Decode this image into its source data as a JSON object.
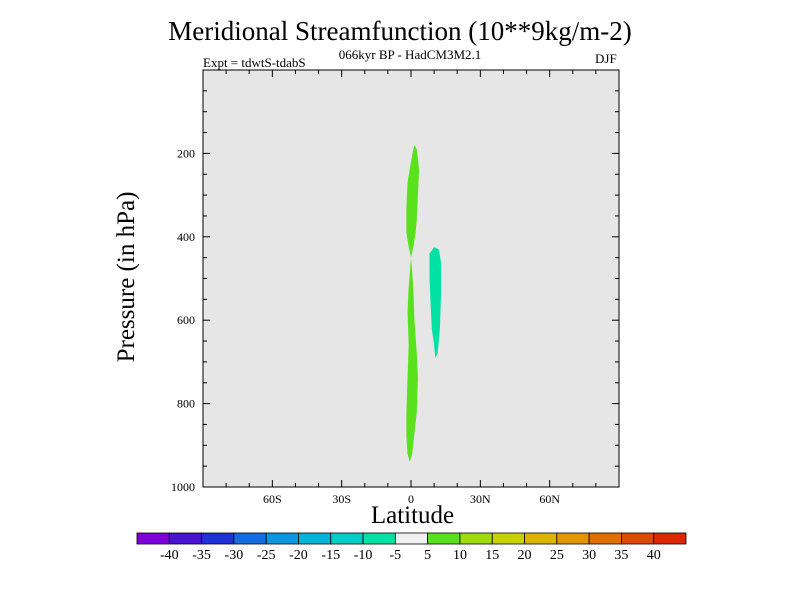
{
  "chart_data": {
    "type": "contour",
    "title": "Meridional Streamfunction (10**9kg/m-2)",
    "subtitle": "066kyr BP - HadCM3M2.1",
    "experiment": "Expt = tdwtS-tdabS",
    "season": "DJF",
    "xlabel": "Latitude",
    "ylabel": "Pressure (in hPa)",
    "xlim": [
      -90,
      90
    ],
    "ylim": [
      1000,
      0
    ],
    "x_ticks": [
      {
        "value": -60,
        "label": "60S"
      },
      {
        "value": -30,
        "label": "30S"
      },
      {
        "value": 0,
        "label": "0"
      },
      {
        "value": 30,
        "label": "30N"
      },
      {
        "value": 60,
        "label": "60N"
      }
    ],
    "y_ticks": [
      {
        "value": 200,
        "label": "200"
      },
      {
        "value": 400,
        "label": "400"
      },
      {
        "value": 600,
        "label": "600"
      },
      {
        "value": 800,
        "label": "800"
      },
      {
        "value": 1000,
        "label": "1000"
      }
    ],
    "background_color": "#e6e6e6",
    "colorbar": {
      "levels": [
        "-40",
        "-35",
        "-30",
        "-25",
        "-20",
        "-15",
        "-10",
        "-5",
        "5",
        "10",
        "15",
        "20",
        "25",
        "30",
        "35",
        "40"
      ],
      "colors": [
        "#7f00dc",
        "#4b14d2",
        "#1e32d7",
        "#146ee1",
        "#0a96e1",
        "#00b4d7",
        "#00cdc8",
        "#00e1a5",
        "#f0f0f0",
        "#5ae11e",
        "#a0dc0a",
        "#c8d200",
        "#dcb400",
        "#e19600",
        "#e16e00",
        "#dc4b00",
        "#dc2800"
      ]
    },
    "regions": [
      {
        "name": "positive-5-10-upper",
        "range": "5 to 10",
        "color": "#5ae11e",
        "points": [
          [
            1.5,
            180
          ],
          [
            2.5,
            190
          ],
          [
            3.5,
            240
          ],
          [
            3,
            300
          ],
          [
            2.5,
            360
          ],
          [
            2,
            390
          ],
          [
            1,
            425
          ],
          [
            0,
            450
          ],
          [
            -1,
            425
          ],
          [
            -2,
            390
          ],
          [
            -2,
            330
          ],
          [
            -1.5,
            270
          ],
          [
            0,
            220
          ],
          [
            1,
            190
          ]
        ]
      },
      {
        "name": "positive-5-10-lower",
        "range": "5 to 10",
        "color": "#5ae11e",
        "points": [
          [
            0,
            450
          ],
          [
            1,
            520
          ],
          [
            1.5,
            600
          ],
          [
            2.5,
            680
          ],
          [
            3,
            740
          ],
          [
            2.5,
            820
          ],
          [
            1.5,
            870
          ],
          [
            0.5,
            920
          ],
          [
            -0.5,
            940
          ],
          [
            -1.5,
            920
          ],
          [
            -2,
            880
          ],
          [
            -2,
            820
          ],
          [
            -1.5,
            740
          ],
          [
            -1,
            660
          ],
          [
            -1.5,
            580
          ],
          [
            -1,
            520
          ]
        ]
      },
      {
        "name": "negative-10-5",
        "range": "-10 to -5",
        "color": "#00e1a5",
        "points": [
          [
            8,
            440
          ],
          [
            10,
            425
          ],
          [
            12,
            430
          ],
          [
            13,
            460
          ],
          [
            13,
            540
          ],
          [
            12.5,
            620
          ],
          [
            11.5,
            680
          ],
          [
            10.5,
            690
          ],
          [
            10,
            660
          ],
          [
            9,
            620
          ],
          [
            8.5,
            560
          ],
          [
            8,
            500
          ]
        ]
      }
    ]
  }
}
